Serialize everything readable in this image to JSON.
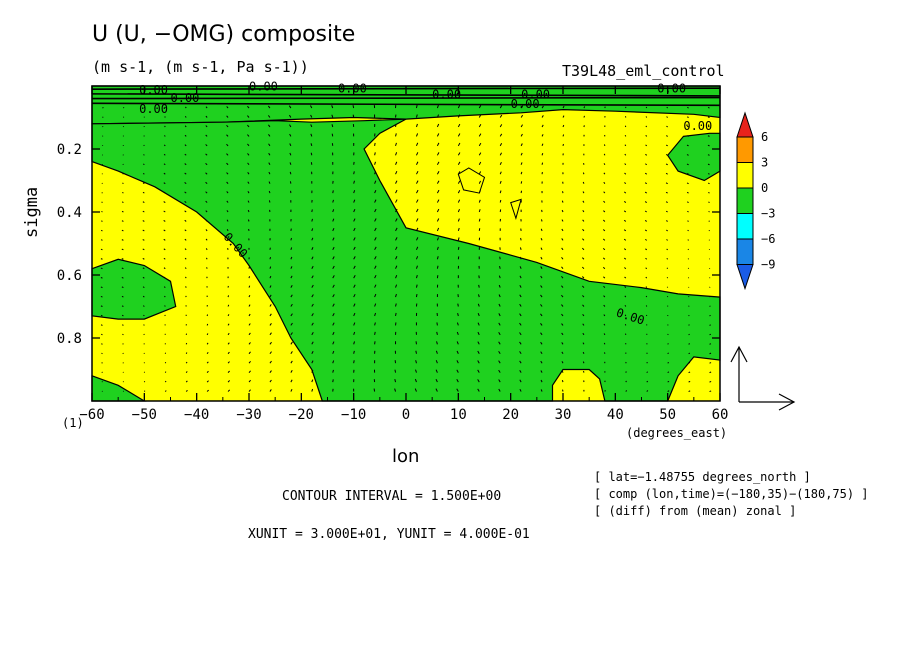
{
  "title": "U (U, −OMG) composite",
  "units": "(m s-1, (m s-1, Pa s-1))",
  "run_name": "T39L48_eml_control",
  "info_lines": [
    "[ lat=−1.48755 degrees_north ]",
    "[ comp (lon,time)=(−180,35)−(180,75) ]",
    "[ (diff) from (mean) zonal ]"
  ],
  "contour_interval": "CONTOUR INTERVAL = 1.500E+00",
  "xy_unit": "XUNIT = 3.000E+01, YUNIT = 4.000E-01",
  "note": "(1)",
  "colors": {
    "positive": "#ffff00",
    "negative": "#1fd11f",
    "contour": "#000000"
  },
  "colorbar": {
    "labels": [
      "6",
      "3",
      "0",
      "−3",
      "−6",
      "−9"
    ],
    "colors": [
      "#e8231c",
      "#ff9900",
      "#ffff00",
      "#1fd11f",
      "#00ffff",
      "#1a86e6",
      "#1a5ce6"
    ]
  },
  "chart_data": {
    "type": "contour",
    "xlabel": "lon",
    "xunits": "(degrees_east)",
    "ylabel": "sigma",
    "xlim": [
      -60,
      60
    ],
    "ylim": [
      1.0,
      0.0
    ],
    "xticks": [
      -60,
      -50,
      -40,
      -30,
      -20,
      -10,
      0,
      10,
      20,
      30,
      40,
      50,
      60
    ],
    "xtick_labels": [
      "−60",
      "−50",
      "−40",
      "−30",
      "−20",
      "−10",
      "0",
      "10",
      "20",
      "30",
      "40",
      "50",
      "60"
    ],
    "yticks": [
      0.2,
      0.4,
      0.6,
      0.8
    ],
    "ytick_labels": [
      "0.2",
      "0.4",
      "0.6",
      "0.8"
    ],
    "contour_labels": [
      "0.00"
    ],
    "negative_regions": [
      [
        [
          -60,
          0.12
        ],
        [
          -35,
          0.115
        ],
        [
          -20,
          0.105
        ],
        [
          -10,
          0.1
        ],
        [
          0,
          0.105
        ],
        [
          10,
          0.095
        ],
        [
          22,
          0.085
        ],
        [
          30,
          0.075
        ],
        [
          40,
          0.08
        ],
        [
          55,
          0.09
        ],
        [
          60,
          0.1
        ],
        [
          60,
          0.0
        ],
        [
          -60,
          0.0
        ]
      ],
      [
        [
          -18,
          0.115
        ],
        [
          -8,
          0.11
        ],
        [
          0,
          0.105
        ],
        [
          -5,
          0.15
        ],
        [
          -8,
          0.2
        ],
        [
          -5,
          0.3
        ],
        [
          0,
          0.45
        ],
        [
          12,
          0.5
        ],
        [
          25,
          0.56
        ],
        [
          35,
          0.62
        ],
        [
          45,
          0.64
        ],
        [
          52,
          0.66
        ],
        [
          60,
          0.67
        ],
        [
          60,
          0.87
        ],
        [
          55,
          0.86
        ],
        [
          52,
          0.92
        ],
        [
          50,
          1.0
        ],
        [
          38,
          1.0
        ],
        [
          37,
          0.93
        ],
        [
          35,
          0.9
        ],
        [
          30,
          0.9
        ],
        [
          28,
          0.95
        ],
        [
          28,
          1.0
        ],
        [
          -16,
          1.0
        ],
        [
          -18,
          0.9
        ],
        [
          -22,
          0.8
        ],
        [
          -25,
          0.7
        ],
        [
          -30,
          0.57
        ],
        [
          -33,
          0.5
        ],
        [
          -40,
          0.4
        ],
        [
          -48,
          0.32
        ],
        [
          -55,
          0.27
        ],
        [
          -60,
          0.24
        ],
        [
          -60,
          0.12
        ],
        [
          -35,
          0.115
        ],
        [
          -25,
          0.11
        ]
      ],
      [
        [
          -60,
          0.58
        ],
        [
          -55,
          0.55
        ],
        [
          -50,
          0.57
        ],
        [
          -45,
          0.62
        ],
        [
          -44,
          0.7
        ],
        [
          -50,
          0.74
        ],
        [
          -55,
          0.74
        ],
        [
          -60,
          0.73
        ]
      ],
      [
        [
          -60,
          0.92
        ],
        [
          -55,
          0.95
        ],
        [
          -50,
          1.0
        ],
        [
          -60,
          1.0
        ]
      ],
      [
        [
          53,
          0.16
        ],
        [
          58,
          0.15
        ],
        [
          60,
          0.15
        ],
        [
          60,
          0.27
        ],
        [
          57,
          0.3
        ],
        [
          52,
          0.27
        ],
        [
          50,
          0.22
        ]
      ]
    ],
    "closed_contours": [
      [
        [
          10,
          0.28
        ],
        [
          12,
          0.26
        ],
        [
          15,
          0.29
        ],
        [
          14,
          0.34
        ],
        [
          11,
          0.33
        ]
      ],
      [
        [
          20,
          0.37
        ],
        [
          22,
          0.36
        ],
        [
          21,
          0.42
        ]
      ]
    ],
    "vector_reference": {
      "xunit": 30.0,
      "yunit": 0.4
    }
  }
}
